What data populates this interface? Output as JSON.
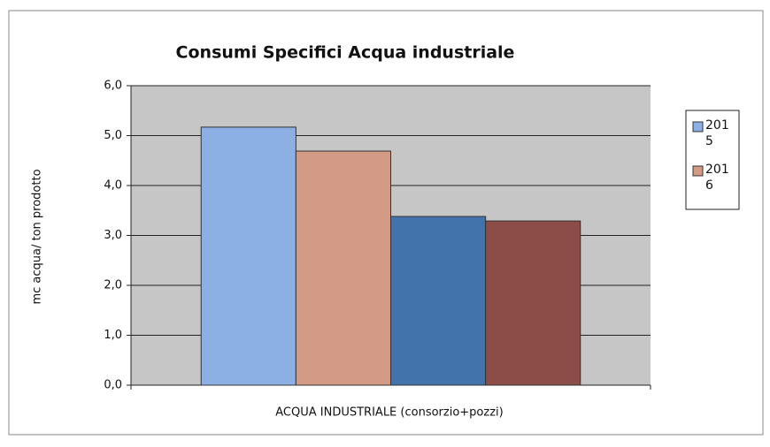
{
  "chart_data": {
    "type": "bar",
    "title": "Consumi Specifici Acqua industriale",
    "x_label": "ACQUA INDUSTRIALE (consorzio+pozzi)",
    "y_label": "mc acqua/ ton prodotto",
    "categories": [
      "ACQUA INDUSTRIALE (consorzio+pozzi)"
    ],
    "series": [
      {
        "name": "2015",
        "color": "#8db0e4",
        "values": [
          5.17
        ]
      },
      {
        "name": "2016",
        "color": "#d39a86",
        "values": [
          4.69
        ]
      },
      {
        "color": "#4274ab",
        "values": [
          3.38
        ]
      },
      {
        "color": "#8c4c47",
        "values": [
          3.29
        ]
      }
    ],
    "ylim": [
      0,
      6
    ],
    "yticks": [
      {
        "value": 0,
        "label": "0,0"
      },
      {
        "value": 1,
        "label": "1,0"
      },
      {
        "value": 2,
        "label": "2,0"
      },
      {
        "value": 3,
        "label": "3,0"
      },
      {
        "value": 4,
        "label": "4,0"
      },
      {
        "value": 5,
        "label": "5,0"
      },
      {
        "value": 6,
        "label": "6,0"
      }
    ],
    "grid": true,
    "legend": "right"
  }
}
